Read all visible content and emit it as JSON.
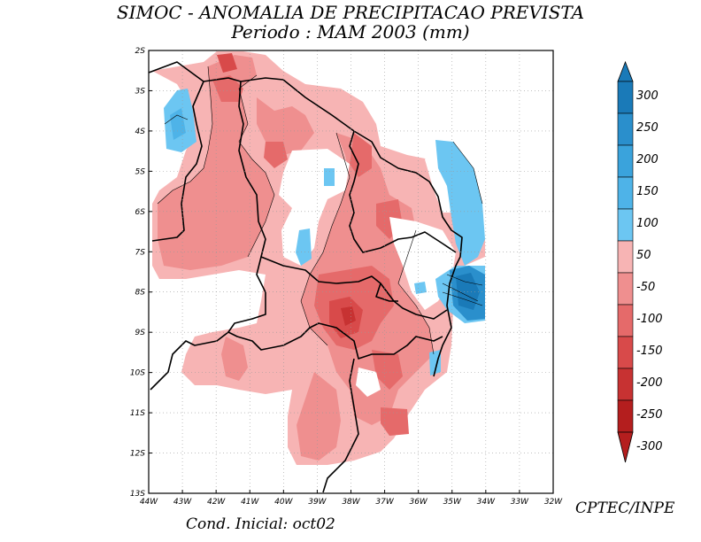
{
  "chart_data": {
    "type": "heatmap",
    "title": "SIMOC -  ANOMALIA DE PRECIPITACAO PREVISTA",
    "subtitle": "Periodo : MAM 2003 (mm)",
    "x_ticks": [
      "44W",
      "43W",
      "42W",
      "41W",
      "40W",
      "39W",
      "38W",
      "37W",
      "36W",
      "35W",
      "34W",
      "33W",
      "32W"
    ],
    "y_ticks": [
      "2S",
      "3S",
      "4S",
      "5S",
      "6S",
      "7S",
      "8S",
      "9S",
      "10S",
      "11S",
      "12S",
      "13S"
    ],
    "xlim": [
      -44,
      -32
    ],
    "ylim": [
      -13,
      -2
    ],
    "grid": true,
    "colorbar": {
      "labels": [
        "300",
        "250",
        "200",
        "150",
        "100",
        "50",
        "-50",
        "-100",
        "-150",
        "-200",
        "-250",
        "-300"
      ],
      "colors": [
        "#1a7ab8",
        "#2a8fcc",
        "#3aa3dc",
        "#4eb3e8",
        "#6cc6f2",
        "#ffffff",
        "#f7b4b4",
        "#ef8f8f",
        "#e56a6a",
        "#d84a4a",
        "#c73232",
        "#b41e1e"
      ],
      "top_arrow_color": "#1a7ab8",
      "bottom_arrow_color": "#b41e1e"
    },
    "regions": [
      {
        "category": "-50 to -100",
        "color": "#f7b4b4"
      },
      {
        "category": "-100 to -150",
        "color": "#ef8f8f"
      },
      {
        "category": "-150 to -200",
        "color": "#e56a6a"
      },
      {
        "category": "-200 to -250",
        "color": "#d84a4a"
      },
      {
        "category": "50 to 100",
        "color": "#6cc6f2"
      },
      {
        "category": "100 to 150",
        "color": "#4eb3e8"
      },
      {
        "category": "200 to 250",
        "color": "#2a8fcc"
      },
      {
        "category": "250 to 300",
        "color": "#1a7ab8"
      }
    ]
  },
  "footer": {
    "initial_condition": "Cond. Inicial: oct02",
    "credit": "CPTEC/INPE"
  }
}
